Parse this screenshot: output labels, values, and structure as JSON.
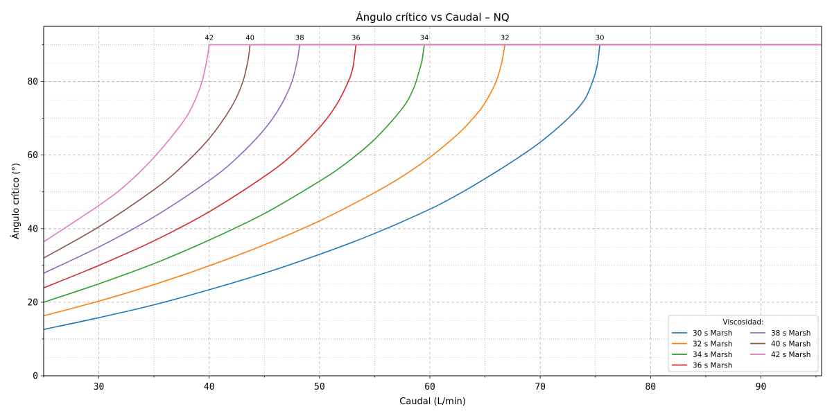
{
  "chart_data": {
    "type": "line",
    "title": "Ángulo crítico vs Caudal – NQ",
    "xlabel": "Caudal (L/min)",
    "ylabel": "Ángulo crítico (°)",
    "xlim": [
      25,
      95.5
    ],
    "ylim": [
      0,
      95
    ],
    "x_ticks": [
      30,
      40,
      50,
      60,
      70,
      80,
      90
    ],
    "x_minor_ticks": [
      25,
      35,
      45,
      55,
      65,
      75,
      85,
      95
    ],
    "y_ticks": [
      0,
      20,
      40,
      60,
      80
    ],
    "y_minor_ticks": [
      10,
      30,
      50,
      70,
      90
    ],
    "grid": true,
    "legend": {
      "title": "Viscosidad:",
      "placement": "bottom-right",
      "columns": 2
    },
    "cap_angle": 90,
    "series": [
      {
        "name": "30 s Marsh",
        "color": "#1f77b4",
        "annotation": "30",
        "x": [
          25,
          30,
          35,
          40,
          45,
          50,
          55,
          60,
          62.5,
          65,
          67.5,
          70,
          72.5,
          74,
          74.8,
          75.2,
          75.4,
          95.5
        ],
        "y": [
          12.6,
          15.8,
          19.3,
          23.4,
          27.9,
          33,
          38.7,
          45.3,
          49.2,
          53.6,
          58.3,
          63.5,
          69.9,
          75.0,
          80.5,
          85.0,
          90,
          90
        ]
      },
      {
        "name": "32 s Marsh",
        "color": "#ff7f0e",
        "annotation": "32",
        "x": [
          25,
          30,
          35,
          40,
          45,
          50,
          55,
          57.5,
          60,
          62.5,
          64,
          65,
          66,
          66.5,
          66.8,
          95.5
        ],
        "y": [
          16.3,
          20.3,
          24.8,
          29.9,
          35.6,
          42.1,
          49.8,
          54.2,
          59.4,
          65.6,
          70.3,
          74.2,
          80.0,
          85.0,
          90,
          90
        ]
      },
      {
        "name": "34 s Marsh",
        "color": "#2ca02c",
        "annotation": "34",
        "x": [
          25,
          30,
          35,
          40,
          45,
          50,
          52.5,
          55,
          57.5,
          58.5,
          59,
          59.3,
          59.5,
          95.5
        ],
        "y": [
          20.0,
          25.0,
          30.5,
          36.9,
          44.1,
          52.9,
          58.0,
          64.3,
          72.7,
          78.0,
          82.5,
          86.0,
          90,
          90
        ]
      },
      {
        "name": "36 s Marsh",
        "color": "#d62728",
        "annotation": "36",
        "x": [
          25,
          30,
          35,
          40,
          45,
          47.5,
          50,
          51.5,
          52.5,
          53,
          53.3,
          95.5
        ],
        "y": [
          23.9,
          30.0,
          36.7,
          44.6,
          54.2,
          60.0,
          67.5,
          73.5,
          79.3,
          83.5,
          90,
          90
        ]
      },
      {
        "name": "38 s Marsh",
        "color": "#9467bd",
        "annotation": "38",
        "x": [
          25,
          30,
          35,
          40,
          42.5,
          45,
          46.5,
          47.5,
          48,
          48.2,
          95.5
        ],
        "y": [
          27.9,
          35.0,
          43.2,
          53.1,
          59.2,
          67.0,
          73.5,
          80.0,
          86.0,
          90,
          90
        ]
      },
      {
        "name": "40 s Marsh",
        "color": "#8c564b",
        "annotation": "40",
        "x": [
          25,
          30,
          35,
          37.5,
          40,
          42,
          43,
          43.5,
          43.7,
          95.5
        ],
        "y": [
          32.0,
          40.5,
          50.6,
          56.8,
          64.5,
          73.0,
          79.5,
          85.5,
          90,
          90
        ]
      },
      {
        "name": "42 s Marsh",
        "color": "#e377c2",
        "annotation": "42",
        "x": [
          25,
          30,
          32.5,
          35,
          37.5,
          38.5,
          39.3,
          39.8,
          40,
          95.5
        ],
        "y": [
          36.4,
          46.3,
          52.0,
          59.4,
          68.5,
          73.5,
          79.5,
          86.0,
          90,
          90
        ]
      }
    ]
  }
}
